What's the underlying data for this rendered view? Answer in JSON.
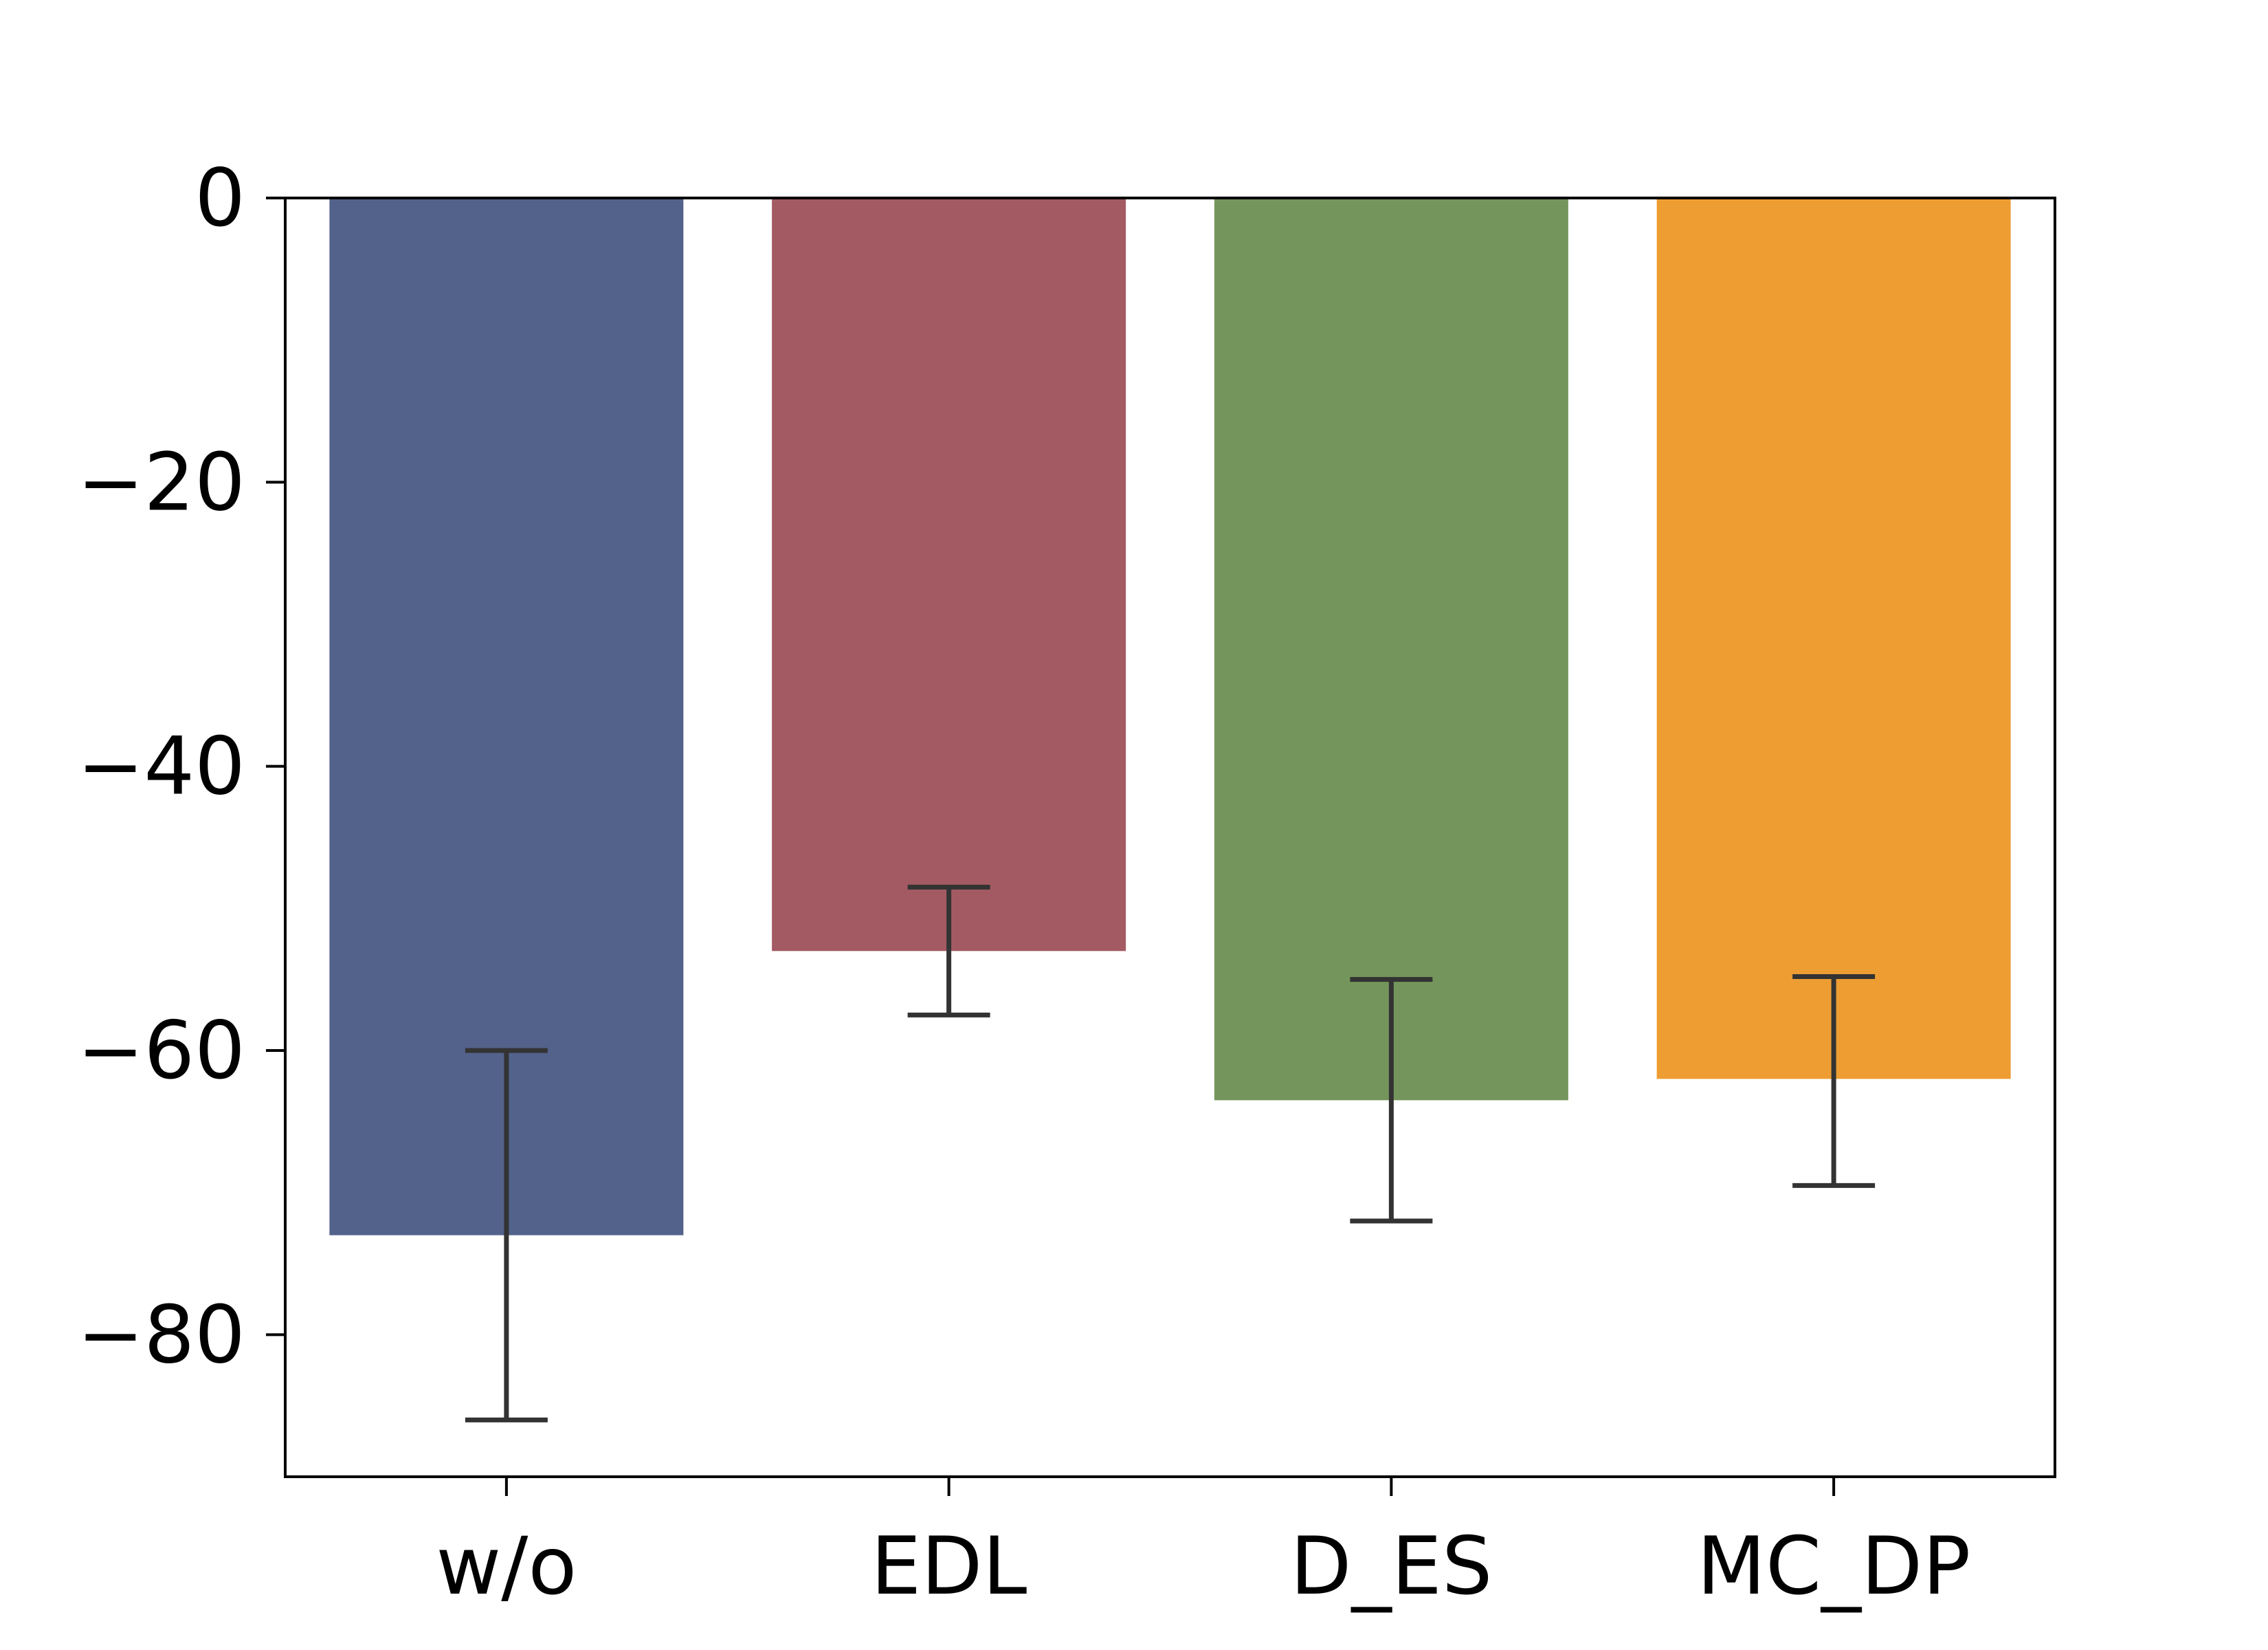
{
  "chart_data": {
    "type": "bar",
    "categories": [
      "w/o",
      "EDL",
      "D_ES",
      "MC_DP"
    ],
    "values": [
      -73,
      -53,
      -63.5,
      -62
    ],
    "error_low": [
      -86,
      -57.5,
      -72,
      -69.5
    ],
    "error_high": [
      -60,
      -48.5,
      -55,
      -54.8
    ],
    "colors": [
      "#52628a",
      "#a45a62",
      "#74965c",
      "#ee9d33"
    ],
    "yticks": [
      0,
      -20,
      -40,
      -60,
      -80
    ],
    "ytick_labels": [
      "0",
      "−20",
      "−40",
      "−60",
      "−80"
    ],
    "ylim": [
      -90,
      0
    ],
    "title": "",
    "xlabel": "",
    "ylabel": "",
    "grid": false
  }
}
